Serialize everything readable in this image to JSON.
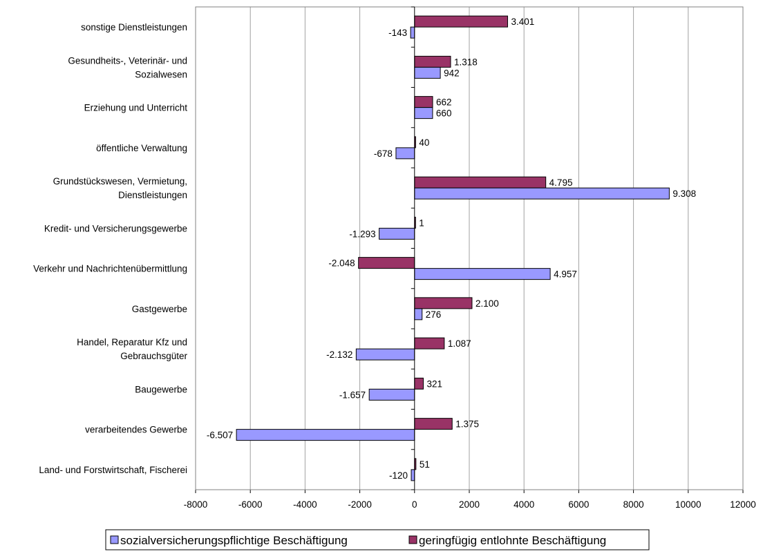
{
  "chart_data": {
    "type": "bar",
    "orientation": "horizontal",
    "categories": [
      [
        "sonstige Dienstleistungen"
      ],
      [
        "Gesundheits-, Veterinär- und",
        "Sozialwesen"
      ],
      [
        "Erziehung und Unterricht"
      ],
      [
        "öffentliche Verwaltung"
      ],
      [
        "Grundstückswesen, Vermietung,",
        "Dienstleistungen"
      ],
      [
        "Kredit- und Versicherungsgewerbe"
      ],
      [
        "Verkehr und Nachrichtenübermittlung"
      ],
      [
        "Gastgewerbe"
      ],
      [
        "Handel, Reparatur Kfz und",
        "Gebrauchsgüter"
      ],
      [
        "Baugewerbe"
      ],
      [
        "verarbeitendes Gewerbe"
      ],
      [
        "Land- und Forstwirtschaft, Fischerei"
      ]
    ],
    "series": [
      {
        "name": "sozialversicherungspflichtige Beschäftigung",
        "color": "#9999ff",
        "values": [
          -143,
          942,
          660,
          -678,
          9308,
          -1293,
          4957,
          276,
          -2132,
          -1657,
          -6507,
          -120
        ],
        "labels": [
          "-143",
          "942",
          "660",
          "-678",
          "9.308",
          "-1.293",
          "4.957",
          "276",
          "-2.132",
          "-1.657",
          "-6.507",
          "-120"
        ]
      },
      {
        "name": "geringfügig entlohnte Beschäftigung",
        "color": "#993366",
        "values": [
          3401,
          1318,
          662,
          40,
          4795,
          1,
          -2048,
          2100,
          1087,
          321,
          1375,
          51
        ],
        "labels": [
          "3.401",
          "1.318",
          "662",
          "40",
          "4.795",
          "1",
          "-2.048",
          "2.100",
          "1.087",
          "321",
          "1.375",
          "51"
        ]
      }
    ],
    "xlim": [
      -8000,
      12000
    ],
    "xticks": [
      -8000,
      -6000,
      -4000,
      -2000,
      0,
      2000,
      4000,
      6000,
      8000,
      10000,
      12000
    ],
    "xtick_labels": [
      "-8000",
      "-6000",
      "-4000",
      "-2000",
      "0",
      "2000",
      "4000",
      "6000",
      "8000",
      "10000",
      "12000"
    ],
    "grid": "vertical",
    "legend": "bottom",
    "title": "",
    "xlabel": "",
    "ylabel": ""
  }
}
